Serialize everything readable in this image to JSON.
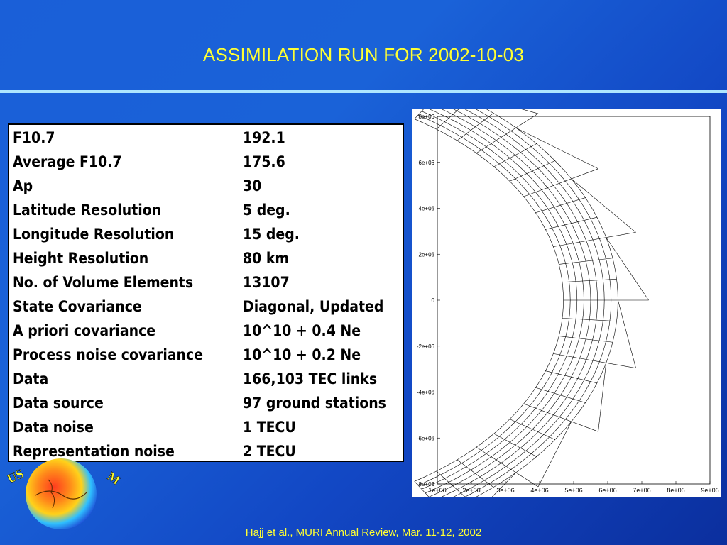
{
  "title": "ASSIMILATION RUN FOR 2002-10-03",
  "params": [
    {
      "label": "F10.7",
      "value": "192.1"
    },
    {
      "label": "Average F10.7",
      "value": "175.6"
    },
    {
      "label": "Ap",
      "value": "30"
    },
    {
      "label": "Latitude Resolution",
      "value": "5 deg."
    },
    {
      "label": "Longitude Resolution",
      "value": "15 deg."
    },
    {
      "label": "Height Resolution",
      "value": "80 km"
    },
    {
      "label": "No. of Volume Elements",
      "value": "13107"
    },
    {
      "label": "State Covariance",
      "value": "Diagonal, Updated"
    },
    {
      "label": "A priori covariance",
      "value": "10^10 + 0.4 Ne"
    },
    {
      "label": "Process noise covariance",
      "value": "10^10 + 0.2 Ne"
    },
    {
      "label": "Data",
      "value": "166,103 TEC links"
    },
    {
      "label": "Data source",
      "value": "97 ground stations"
    },
    {
      "label": "Data noise",
      "value": "1 TECU"
    },
    {
      "label": "Representation noise",
      "value": "2 TECU"
    }
  ],
  "grid_plot": {
    "x_ticks": [
      "1e+06",
      "2e+06",
      "3e+06",
      "4e+06",
      "5e+06",
      "6e+06",
      "7e+06",
      "8e+06",
      "9e+06"
    ],
    "y_ticks": [
      "8e+06",
      "6e+06",
      "4e+06",
      "2e+06",
      "0",
      "-2e+06",
      "-4e+06",
      "-6e+06",
      "-8e+06"
    ]
  },
  "logo": {
    "text_left": "US",
    "text_right": "M"
  },
  "footer": "Hajj et al., MURI Annual Review, Mar. 11-12, 2002"
}
